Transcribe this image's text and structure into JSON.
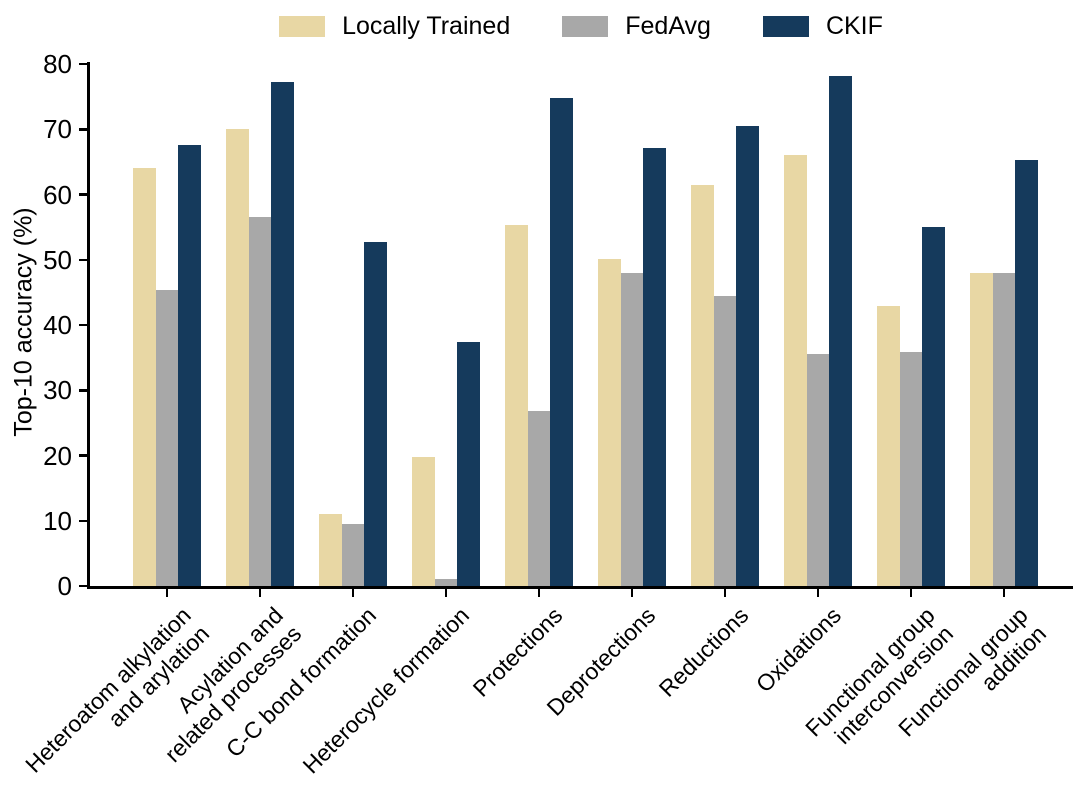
{
  "chart_data": {
    "type": "bar",
    "title": "",
    "xlabel": "",
    "ylabel": "Top-10 accuracy (%)",
    "ylim": [
      0,
      80
    ],
    "yticks": [
      0,
      10,
      20,
      30,
      40,
      50,
      60,
      70,
      80
    ],
    "grid": false,
    "legend_position": "top-center",
    "categories": [
      "Heteroatom alkylation and arylation",
      "Acylation and related processes",
      "C-C bond formation",
      "Heterocycle formation",
      "Protections",
      "Deprotections",
      "Reductions",
      "Oxidations",
      "Functional group interconversion",
      "Functional group addition"
    ],
    "categories_display": [
      [
        "Heteroatom alkylation",
        "and arylation"
      ],
      [
        "Acylation and",
        "related processes"
      ],
      [
        "C-C bond formation"
      ],
      [
        "Heterocycle formation"
      ],
      [
        "Protections"
      ],
      [
        "Deprotections"
      ],
      [
        "Reductions"
      ],
      [
        "Oxidations"
      ],
      [
        "Functional group",
        "interconversion"
      ],
      [
        "Functional group",
        "addition"
      ]
    ],
    "series": [
      {
        "name": "Locally Trained",
        "color": "#e8d7a4",
        "values": [
          64.0,
          70.0,
          11.1,
          19.8,
          55.3,
          50.1,
          61.5,
          66.0,
          42.9,
          47.9
        ]
      },
      {
        "name": "FedAvg",
        "color": "#a8a8a8",
        "values": [
          45.4,
          56.6,
          9.5,
          1.0,
          26.8,
          47.9,
          44.5,
          35.6,
          35.9,
          47.9
        ]
      },
      {
        "name": "CKIF",
        "color": "#153a5c",
        "values": [
          67.6,
          77.2,
          52.7,
          37.4,
          74.8,
          67.1,
          70.5,
          78.1,
          55.0,
          65.3
        ]
      }
    ],
    "axis_color": "#000000",
    "text_color": "#000000"
  }
}
